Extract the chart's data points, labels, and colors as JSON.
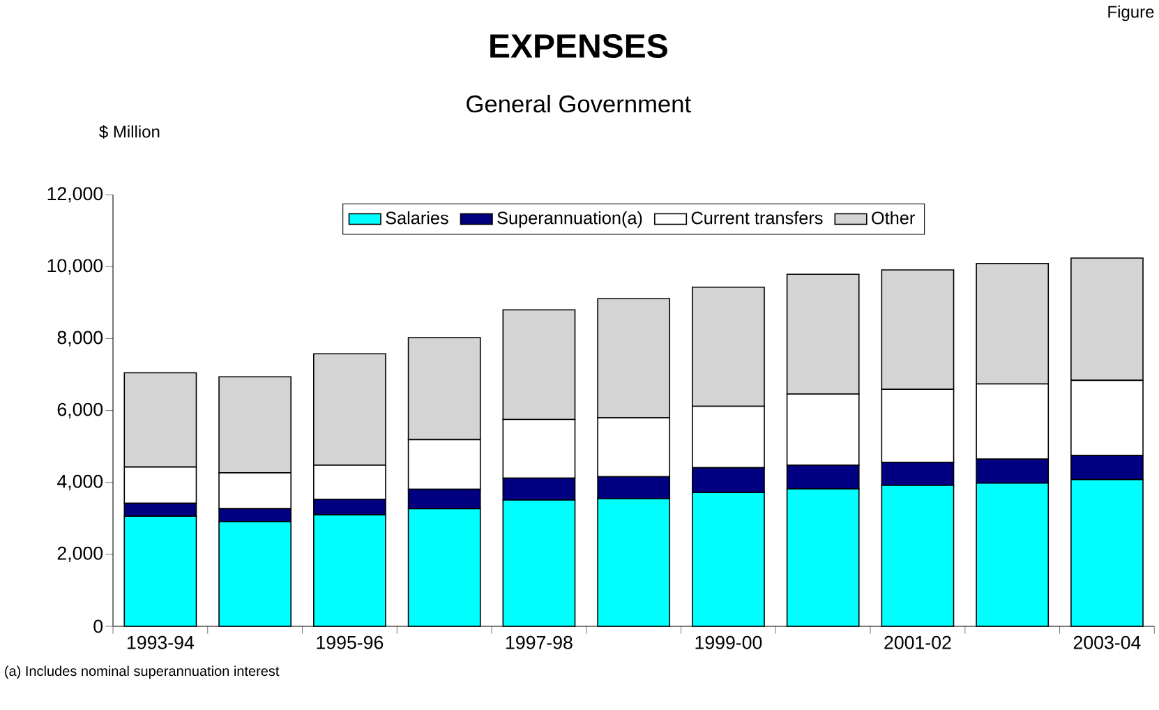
{
  "chart_data": {
    "type": "bar",
    "title": "EXPENSES",
    "subtitle": "General Government",
    "ylabel": "$ Million",
    "categories": [
      "1993-94",
      null,
      "1995-96",
      null,
      "1997-98",
      null,
      "1999-00",
      null,
      "2001-02",
      null,
      "2003-04"
    ],
    "stacked": true,
    "series": [
      {
        "name": "Salaries",
        "color": "#00ffff",
        "values": [
          3060,
          2910,
          3100,
          3270,
          3510,
          3550,
          3720,
          3820,
          3920,
          3980,
          4080
        ]
      },
      {
        "name": "Superannuation(a)",
        "color": "#000080",
        "values": [
          360,
          360,
          430,
          540,
          610,
          610,
          690,
          660,
          640,
          670,
          670
        ]
      },
      {
        "name": "Current transfers",
        "color": "#ffffff",
        "values": [
          1010,
          1000,
          950,
          1380,
          1630,
          1640,
          1710,
          1980,
          2030,
          2090,
          2090
        ]
      },
      {
        "name": "Other",
        "color": "#d4d4d4",
        "values": [
          2620,
          2670,
          3100,
          2840,
          3050,
          3310,
          3310,
          3330,
          3320,
          3350,
          3400
        ]
      }
    ],
    "ylim": [
      0,
      12000
    ],
    "yticks": [
      0,
      {
        "value": 2000,
        "label": "2,000"
      },
      {
        "value": 4000,
        "label": "4,000"
      },
      {
        "value": 6000,
        "label": "6,000"
      },
      {
        "value": 8000,
        "label": "8,000"
      },
      {
        "value": 10000,
        "label": "10,000"
      },
      {
        "value": 12000,
        "label": "12,000"
      }
    ],
    "grid": false,
    "legend": "top",
    "annotations": [
      "(a) Includes nominal superannuation interest",
      "Figure"
    ]
  }
}
